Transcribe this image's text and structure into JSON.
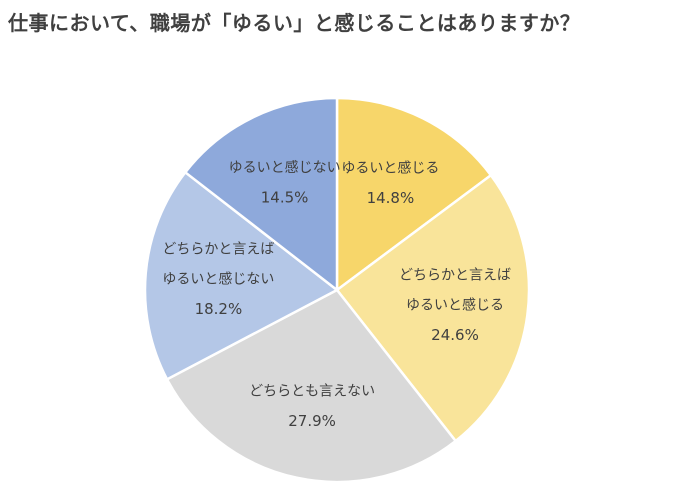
{
  "title": "仕事において、職場が「ゆるい」と感じることはありますか？",
  "chart_data": {
    "type": "pie",
    "title": "仕事において、職場が「ゆるい」と感じることはありますか？",
    "start_angle_deg": 0,
    "direction": "clockwise",
    "slices": [
      {
        "label_lines": [
          "ゆるいと感じる"
        ],
        "value": 14.8,
        "value_label": "14.8%",
        "color": "#F7D66A"
      },
      {
        "label_lines": [
          "どちらかと言えば",
          "ゆるいと感じる"
        ],
        "value": 24.6,
        "value_label": "24.6%",
        "color": "#F9E49A"
      },
      {
        "label_lines": [
          "どちらとも言えない"
        ],
        "value": 27.9,
        "value_label": "27.9%",
        "color": "#D9D9D9"
      },
      {
        "label_lines": [
          "どちらかと言えば",
          "ゆるいと感じない"
        ],
        "value": 18.2,
        "value_label": "18.2%",
        "color": "#B4C7E7"
      },
      {
        "label_lines": [
          "ゆるいと感じない"
        ],
        "value": 14.5,
        "value_label": "14.5%",
        "color": "#8EA9DB"
      }
    ]
  }
}
